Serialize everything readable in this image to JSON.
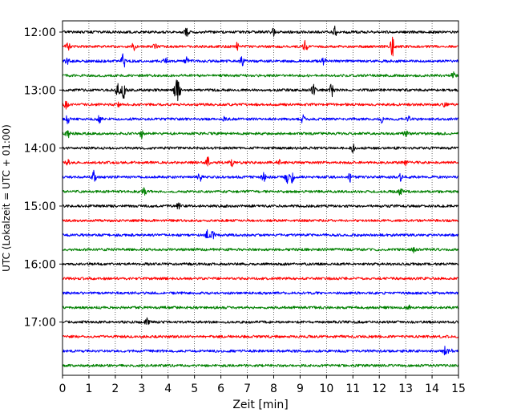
{
  "chart_data": {
    "type": "line",
    "title": "",
    "xlabel": "Zeit  [min]",
    "ylabel": "UTC (Lokalzeit = UTC + 01:00)",
    "xlim": [
      0,
      15
    ],
    "x_ticks": [
      "0",
      "1",
      "2",
      "3",
      "4",
      "5",
      "6",
      "7",
      "8",
      "9",
      "10",
      "11",
      "12",
      "13",
      "14",
      "15"
    ],
    "grid_x": true,
    "y_ticks": [
      {
        "label": "12:00",
        "trace_index": 0
      },
      {
        "label": "13:00",
        "trace_index": 4
      },
      {
        "label": "14:00",
        "trace_index": 8
      },
      {
        "label": "15:00",
        "trace_index": 12
      },
      {
        "label": "16:00",
        "trace_index": 16
      },
      {
        "label": "17:00",
        "trace_index": 20
      }
    ],
    "trace_colors": [
      "#000000",
      "#ff0000",
      "#0000ff",
      "#008000"
    ],
    "series": [
      {
        "start": "12:00",
        "color": "#000000",
        "events": [
          [
            4.7,
            6
          ],
          [
            8.0,
            5
          ],
          [
            10.3,
            7
          ]
        ]
      },
      {
        "start": "12:15",
        "color": "#ff0000",
        "events": [
          [
            0.2,
            5
          ],
          [
            2.7,
            4
          ],
          [
            3.5,
            3
          ],
          [
            6.6,
            5
          ],
          [
            9.2,
            7
          ],
          [
            12.5,
            12
          ]
        ]
      },
      {
        "start": "12:30",
        "color": "#0000ff",
        "events": [
          [
            0.2,
            5
          ],
          [
            2.3,
            10
          ],
          [
            3.9,
            5
          ],
          [
            4.7,
            4
          ],
          [
            6.8,
            5
          ],
          [
            9.9,
            4
          ]
        ]
      },
      {
        "start": "12:45",
        "color": "#008000",
        "events": [
          [
            14.8,
            4
          ]
        ]
      },
      {
        "start": "13:00",
        "color": "#000000",
        "events": [
          [
            2.1,
            10
          ],
          [
            2.3,
            11
          ],
          [
            4.3,
            12
          ],
          [
            4.4,
            10
          ],
          [
            9.5,
            6
          ],
          [
            10.2,
            8
          ]
        ]
      },
      {
        "start": "13:15",
        "color": "#ff0000",
        "events": [
          [
            0.15,
            5
          ],
          [
            2.1,
            4
          ],
          [
            14.5,
            3
          ]
        ]
      },
      {
        "start": "13:30",
        "color": "#0000ff",
        "events": [
          [
            0.2,
            5
          ],
          [
            1.4,
            4
          ],
          [
            6.1,
            4
          ],
          [
            9.1,
            5
          ],
          [
            12.1,
            4
          ],
          [
            13.1,
            4
          ]
        ]
      },
      {
        "start": "13:45",
        "color": "#008000",
        "events": [
          [
            0.2,
            5
          ],
          [
            3.0,
            5
          ],
          [
            13.0,
            4
          ]
        ]
      },
      {
        "start": "14:00",
        "color": "#000000",
        "events": [
          [
            11.0,
            5
          ]
        ]
      },
      {
        "start": "14:15",
        "color": "#ff0000",
        "events": [
          [
            0.2,
            4
          ],
          [
            5.5,
            8
          ],
          [
            6.4,
            4
          ],
          [
            8.2,
            4
          ],
          [
            13.0,
            3
          ]
        ]
      },
      {
        "start": "14:30",
        "color": "#0000ff",
        "events": [
          [
            1.2,
            8
          ],
          [
            5.2,
            5
          ],
          [
            7.6,
            7
          ],
          [
            8.5,
            8
          ],
          [
            8.7,
            6
          ],
          [
            10.9,
            5
          ],
          [
            12.8,
            4
          ]
        ]
      },
      {
        "start": "14:45",
        "color": "#008000",
        "events": [
          [
            3.1,
            5
          ],
          [
            12.8,
            4
          ]
        ]
      },
      {
        "start": "15:00",
        "color": "#000000",
        "events": [
          [
            4.4,
            5
          ]
        ]
      },
      {
        "start": "15:15",
        "color": "#ff0000",
        "events": []
      },
      {
        "start": "15:30",
        "color": "#0000ff",
        "events": [
          [
            5.5,
            6
          ],
          [
            5.7,
            5
          ]
        ]
      },
      {
        "start": "15:45",
        "color": "#008000",
        "events": [
          [
            13.3,
            3
          ]
        ]
      },
      {
        "start": "16:00",
        "color": "#000000",
        "events": []
      },
      {
        "start": "16:15",
        "color": "#ff0000",
        "events": []
      },
      {
        "start": "16:30",
        "color": "#0000ff",
        "events": []
      },
      {
        "start": "16:45",
        "color": "#008000",
        "events": [
          [
            13.1,
            3
          ]
        ]
      },
      {
        "start": "17:00",
        "color": "#000000",
        "events": [
          [
            3.2,
            4
          ]
        ]
      },
      {
        "start": "17:15",
        "color": "#ff0000",
        "events": []
      },
      {
        "start": "17:30",
        "color": "#0000ff",
        "events": [
          [
            14.5,
            6
          ],
          [
            14.7,
            4
          ]
        ]
      },
      {
        "start": "17:45",
        "color": "#008000",
        "events": []
      }
    ]
  }
}
